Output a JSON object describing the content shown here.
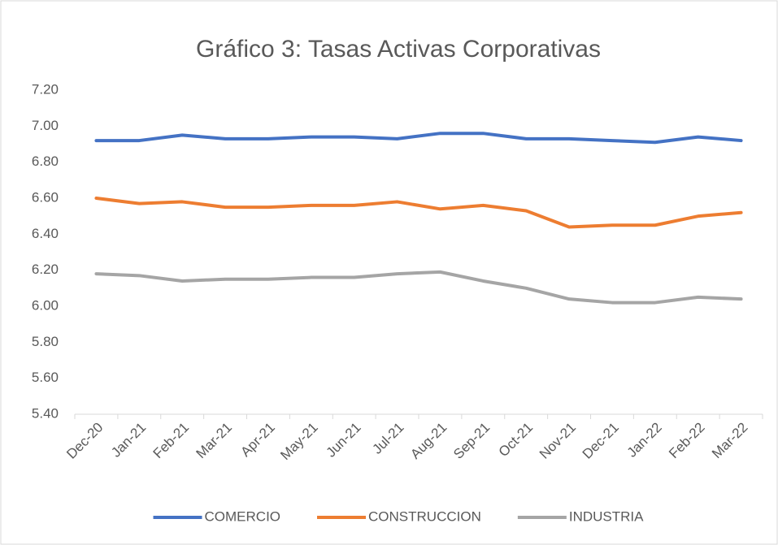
{
  "chart_data": {
    "type": "line",
    "title": "Gráfico 3:  Tasas Activas Corporativas",
    "categories": [
      "Dec-20",
      "Jan-21",
      "Feb-21",
      "Mar-21",
      "Apr-21",
      "May-21",
      "Jun-21",
      "Jul-21",
      "Aug-21",
      "Sep-21",
      "Oct-21",
      "Nov-21",
      "Dec-21",
      "Jan-22",
      "Feb-22",
      "Mar-22"
    ],
    "series": [
      {
        "name": "COMERCIO",
        "color": "#4472c4",
        "values": [
          6.92,
          6.92,
          6.95,
          6.93,
          6.93,
          6.94,
          6.94,
          6.93,
          6.96,
          6.96,
          6.93,
          6.93,
          6.92,
          6.91,
          6.94,
          6.92
        ]
      },
      {
        "name": "CONSTRUCCION",
        "color": "#ed7d31",
        "values": [
          6.6,
          6.57,
          6.58,
          6.55,
          6.55,
          6.56,
          6.56,
          6.58,
          6.54,
          6.56,
          6.53,
          6.44,
          6.45,
          6.45,
          6.5,
          6.52
        ]
      },
      {
        "name": "INDUSTRIA",
        "color": "#a5a5a5",
        "values": [
          6.18,
          6.17,
          6.14,
          6.15,
          6.15,
          6.16,
          6.16,
          6.18,
          6.19,
          6.14,
          6.1,
          6.04,
          6.02,
          6.02,
          6.05,
          6.04
        ]
      }
    ],
    "ylim": [
      5.4,
      7.2
    ],
    "yticks": [
      {
        "value": 5.4,
        "label": "5.40"
      },
      {
        "value": 5.6,
        "label": "5.60"
      },
      {
        "value": 5.8,
        "label": "5.80"
      },
      {
        "value": 6.0,
        "label": "6.00"
      },
      {
        "value": 6.2,
        "label": "6.20"
      },
      {
        "value": 6.4,
        "label": "6.40"
      },
      {
        "value": 6.6,
        "label": "6.60"
      },
      {
        "value": 6.8,
        "label": "6.80"
      },
      {
        "value": 7.0,
        "label": "7.00"
      },
      {
        "value": 7.2,
        "label": "7.20"
      }
    ],
    "grid": false,
    "legend": "bottom"
  }
}
